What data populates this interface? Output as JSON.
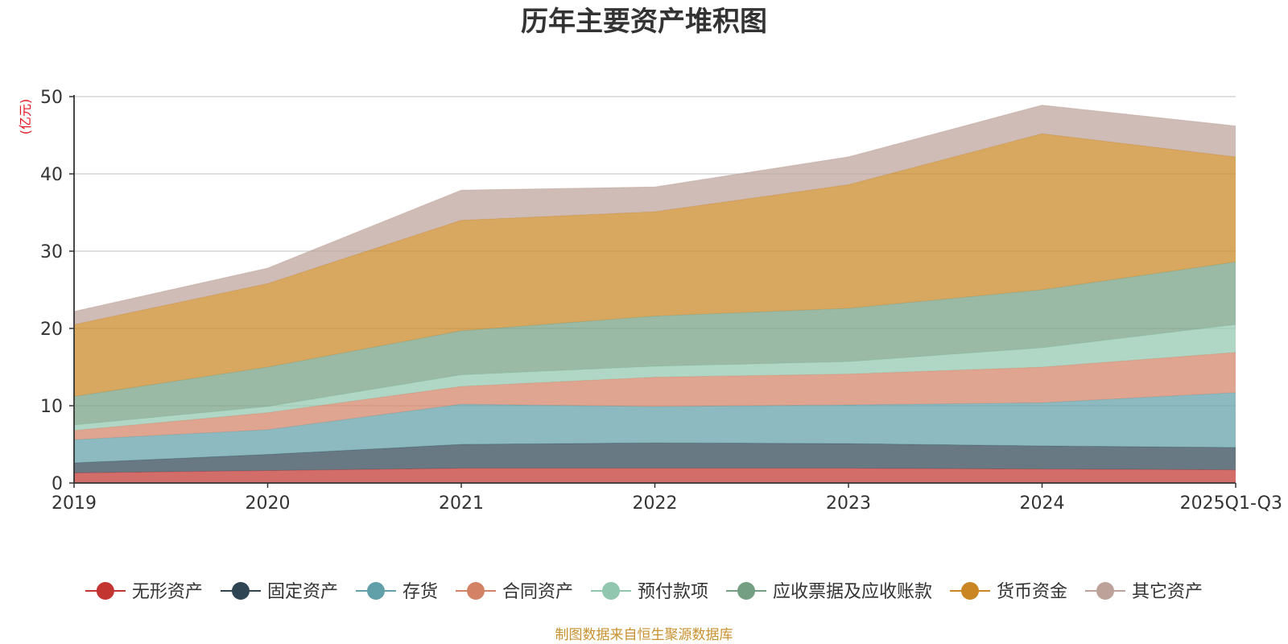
{
  "chart_data": {
    "type": "area",
    "stacked": true,
    "title": "历年主要资产堆积图",
    "ylabel": "(亿元)",
    "xlabel": "",
    "ylim": [
      0,
      50
    ],
    "yticks": [
      0,
      10,
      20,
      30,
      40,
      50
    ],
    "categories": [
      "2019",
      "2020",
      "2021",
      "2022",
      "2023",
      "2024",
      "2025Q1-Q3"
    ],
    "series": [
      {
        "name": "无形资产",
        "color": "#c23531",
        "values": [
          1.3,
          1.6,
          1.9,
          1.9,
          1.9,
          1.8,
          1.7
        ]
      },
      {
        "name": "固定资产",
        "color": "#2f4554",
        "values": [
          1.3,
          2.1,
          3.1,
          3.3,
          3.2,
          3.0,
          2.9
        ]
      },
      {
        "name": "存货",
        "color": "#61a0a8",
        "values": [
          3.0,
          3.2,
          5.2,
          4.7,
          5.0,
          5.6,
          7.1
        ]
      },
      {
        "name": "合同资产",
        "color": "#d48265",
        "values": [
          1.2,
          2.2,
          2.3,
          3.8,
          4.0,
          4.6,
          5.2
        ]
      },
      {
        "name": "预付款项",
        "color": "#91c7ae",
        "values": [
          0.7,
          0.8,
          1.5,
          1.4,
          1.6,
          2.5,
          3.6
        ]
      },
      {
        "name": "应收票据及应收账款",
        "color": "#749f83",
        "values": [
          3.7,
          5.1,
          5.7,
          6.5,
          6.9,
          7.5,
          8.1
        ]
      },
      {
        "name": "货币资金",
        "color": "#ca8622",
        "values": [
          9.3,
          10.8,
          14.3,
          13.5,
          16.0,
          20.2,
          13.6
        ]
      },
      {
        "name": "其它资产",
        "color": "#bda29a",
        "values": [
          1.7,
          2.0,
          3.9,
          3.2,
          3.6,
          3.7,
          4.0
        ]
      }
    ]
  },
  "footer": {
    "source": "制图数据来自恒生聚源数据库"
  }
}
